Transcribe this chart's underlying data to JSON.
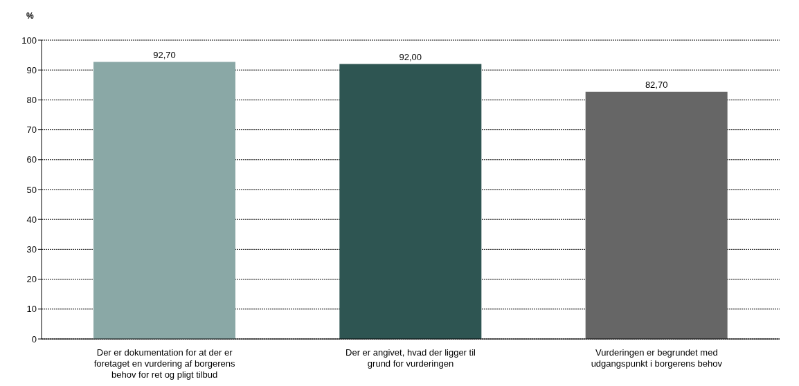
{
  "chart_data": {
    "type": "bar",
    "ylabel": "%",
    "categories": [
      "Der er dokumentation for at der er foretaget en vurdering af borgerens behov for ret og pligt tilbud",
      "Der er angivet, hvad der ligger til grund for vurderingen",
      "Vurderingen er begrundet med udgangspunkt i borgerens behov"
    ],
    "values": [
      92.7,
      92.0,
      82.7
    ],
    "colors": [
      "#8aa8a6",
      "#2e5552",
      "#666666"
    ],
    "value_labels": [
      "92,70",
      "92,00",
      "82,70"
    ],
    "ylim": [
      0,
      100
    ],
    "yticks": [
      0,
      10,
      20,
      30,
      40,
      50,
      60,
      70,
      80,
      90,
      100
    ],
    "grid": "y"
  }
}
